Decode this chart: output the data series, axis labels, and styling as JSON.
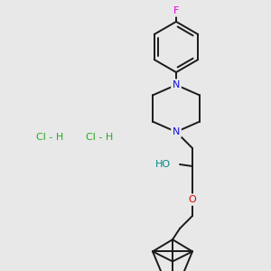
{
  "bg_color": "#e8e8e8",
  "bond_color": "#1a1a1a",
  "bond_width": 1.4,
  "atom_colors": {
    "F": "#e000e0",
    "N": "#1010dd",
    "O_red": "#dd0000",
    "O_teal": "#008888",
    "Cl": "#22aa22"
  },
  "font_size_atom": 7.5,
  "figsize": [
    3.0,
    3.0
  ],
  "dpi": 100
}
